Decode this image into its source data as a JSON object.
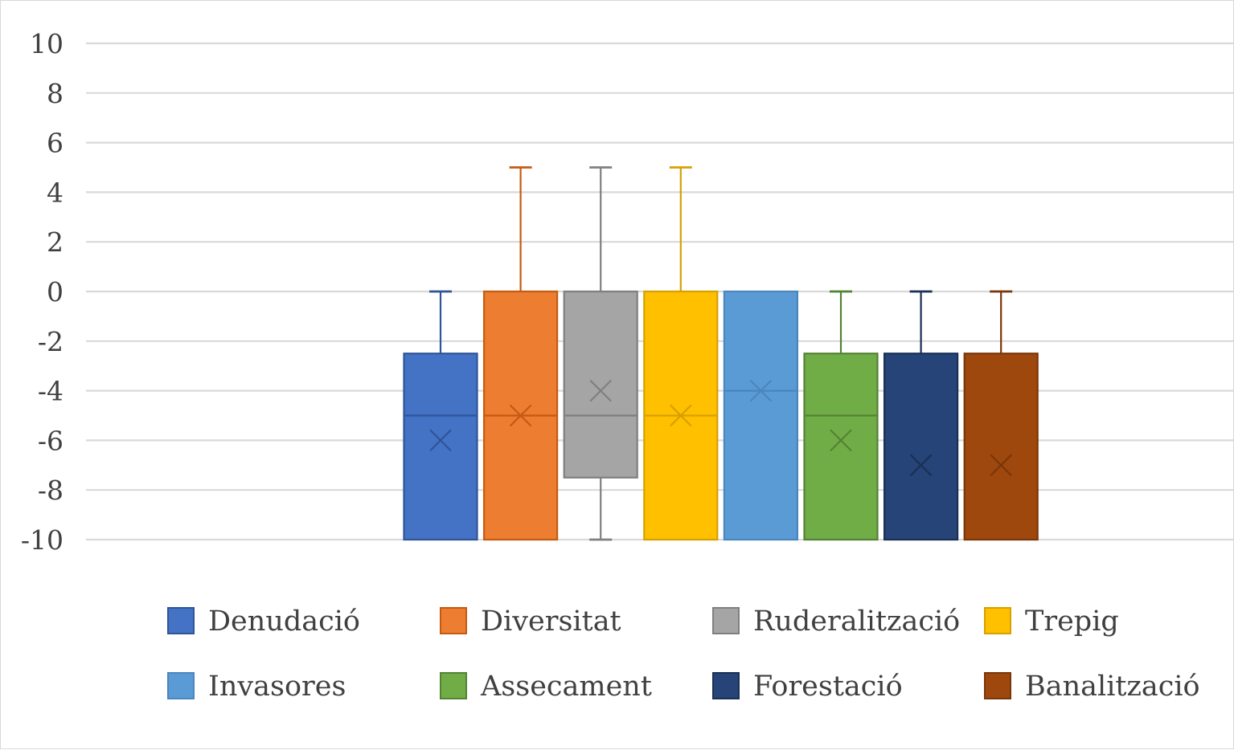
{
  "chart_data": {
    "type": "boxplot",
    "title": "",
    "xlabel": "",
    "ylabel": "",
    "ylim": [
      -10,
      10
    ],
    "yticks": [
      10,
      8,
      6,
      4,
      2,
      0,
      -2,
      -4,
      -6,
      -8,
      -10
    ],
    "grid": true,
    "legend_position": "bottom",
    "series": [
      {
        "name": "Denudació",
        "color": "#4472c4",
        "edge": "#2f5597",
        "min": -10,
        "q1": -10,
        "median": -5,
        "q3": -2.5,
        "max": 0,
        "mean": -6
      },
      {
        "name": "Diversitat",
        "color": "#ed7d31",
        "edge": "#c55a11",
        "min": -10,
        "q1": -10,
        "median": -5,
        "q3": 0,
        "max": 5,
        "mean": -5
      },
      {
        "name": "Ruderalització",
        "color": "#a5a5a5",
        "edge": "#7f7f7f",
        "min": -10,
        "q1": -7.5,
        "median": -5,
        "q3": 0,
        "max": 5,
        "mean": -4
      },
      {
        "name": "Trepig",
        "color": "#ffc000",
        "edge": "#d6a000",
        "min": -10,
        "q1": -10,
        "median": -5,
        "q3": 0,
        "max": 5,
        "mean": -5
      },
      {
        "name": "Invasores",
        "color": "#5b9bd5",
        "edge": "#4a86bd",
        "min": -10,
        "q1": -10,
        "median": -4,
        "q3": 0,
        "max": 0,
        "mean": -4
      },
      {
        "name": "Assecament",
        "color": "#70ad47",
        "edge": "#548235",
        "min": -10,
        "q1": -10,
        "median": -5,
        "q3": -2.5,
        "max": 0,
        "mean": -6
      },
      {
        "name": "Forestació",
        "color": "#264478",
        "edge": "#1a2f54",
        "min": -10,
        "q1": -10,
        "median": -10,
        "q3": -2.5,
        "max": 0,
        "mean": -7
      },
      {
        "name": "Banalització",
        "color": "#9e480e",
        "edge": "#7a3608",
        "min": -10,
        "q1": -10,
        "median": -10,
        "q3": -2.5,
        "max": 0,
        "mean": -7
      }
    ]
  }
}
